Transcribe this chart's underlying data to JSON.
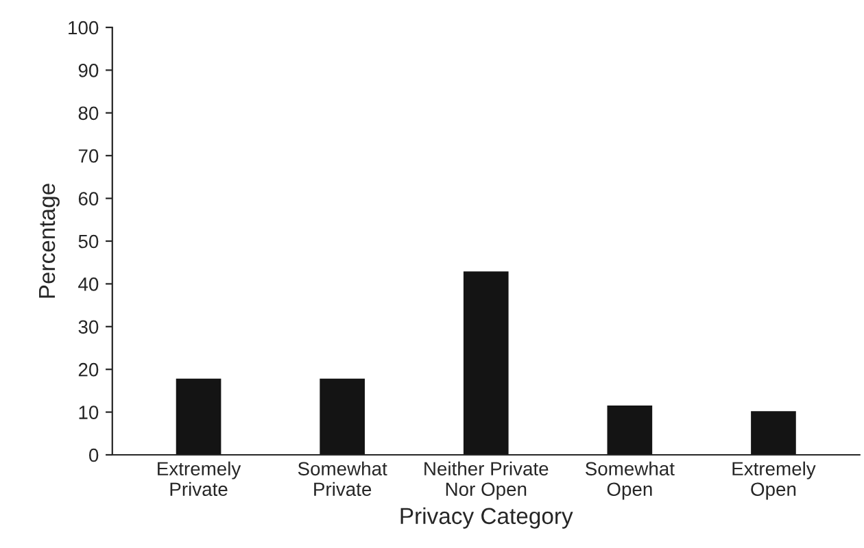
{
  "chart_data": {
    "type": "bar",
    "xlabel": "Privacy Category",
    "ylabel": "Percentage",
    "categories": [
      "Extremely\nPrivate",
      "Somewhat\nPrivate",
      "Neither Private\nNor Open",
      "Somewhat\nOpen",
      "Extremely\nOpen"
    ],
    "values": [
      17.6,
      17.6,
      42.7,
      11.3,
      10.0
    ],
    "color": "#141414",
    "ylim": [
      0,
      100
    ],
    "yticks": [
      0,
      10,
      20,
      30,
      40,
      50,
      60,
      70,
      80,
      90,
      100
    ],
    "grid": false
  }
}
